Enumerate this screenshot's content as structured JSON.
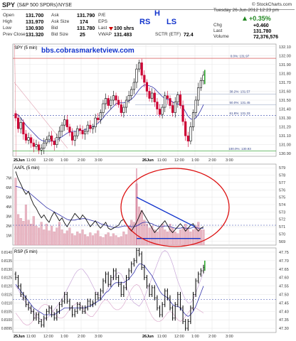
{
  "header": {
    "symbol": "SPY",
    "name": "(S&P 500 SPDRs)",
    "exchange": "NYSE",
    "date": "Tuesday 26-Jun-2012 12:23 pm",
    "logo": "© StockCharts.com",
    "fields": [
      {
        "label": "Open",
        "value": "131.700"
      },
      {
        "label": "High",
        "value": "131.970"
      },
      {
        "label": "Low",
        "value": "130.930"
      },
      {
        "label": "Prev Close",
        "value": "131.320"
      },
      {
        "label": "Ask",
        "value": "131.790"
      },
      {
        "label": "Ask Size",
        "value": "174"
      },
      {
        "label": "Bid",
        "value": "131.780"
      },
      {
        "label": "Bid Size",
        "value": "25"
      },
      {
        "label": "P/E",
        "value": ""
      },
      {
        "label": "EPS",
        "value": ""
      },
      {
        "label": "Last",
        "value": "100 shrs"
      },
      {
        "label": "VWAP",
        "value": "131.483"
      },
      {
        "label": "SCTR (ETF)",
        "value": "72.4"
      }
    ],
    "change_pct": "+0.35%",
    "chg_label": "Chg",
    "chg": "+0.460",
    "last_label": "Last",
    "last": "131.780",
    "volume_label": "Volume",
    "volume": "72,376,576"
  },
  "annotations": {
    "rs": "RS",
    "h": "H",
    "ls": "LS",
    "watermark": "bbs.cobrasmarketview.com"
  },
  "colors": {
    "candle_up": "#000000",
    "candle_down": "#cc0033",
    "ma_line": "#3333aa",
    "annotation_blue": "#1133cc",
    "circle": "#dd1111",
    "volume_bar": "#e9b8c4",
    "green_bar": "#33aa33",
    "rsp_ratio": "#aa66aa"
  },
  "chart_data": [
    {
      "type": "candlestick",
      "title": "SPY (5 min)",
      "y_ticks": [
        "132.10",
        "132.00",
        "131.90",
        "131.80",
        "131.70",
        "131.60",
        "131.50",
        "131.40",
        "131.30",
        "131.20",
        "131.10",
        "131.00",
        "130.90"
      ],
      "ylim": [
        130.87,
        132.13
      ],
      "x_ticks": [
        "25Jun",
        "11:00",
        "12:00",
        "1:00",
        "2:00",
        "3:00",
        "26Jun",
        "11:00",
        "12:00",
        "1:00",
        "2:00",
        "3:00"
      ],
      "fib_levels": [
        {
          "label": "0.0%: 131.97",
          "value": 131.97
        },
        {
          "label": "38.2%: 131.57",
          "value": 131.57
        },
        {
          "label": "50.0%: 131.45",
          "value": 131.45
        },
        {
          "label": "61.8%: 131.33",
          "value": 131.33
        },
        {
          "label": "100.0%: 130.93",
          "value": 130.93
        }
      ],
      "close": [
        131.3,
        131.18,
        131.25,
        131.12,
        131.05,
        131.08,
        131.02,
        130.98,
        131.0,
        130.94,
        130.96,
        131.02,
        131.06,
        131.1,
        131.04,
        131.0,
        131.08,
        131.15,
        131.22,
        131.28,
        131.2,
        131.14,
        131.05,
        131.1,
        131.18,
        131.16,
        131.12,
        131.15,
        131.22,
        131.18,
        131.2,
        131.3,
        131.28,
        131.36,
        131.46,
        131.52,
        131.44,
        131.5,
        131.55,
        131.5,
        131.45,
        131.36,
        131.42,
        131.5,
        131.55,
        131.62,
        131.7,
        131.85,
        131.92,
        131.78,
        131.7,
        131.6,
        131.52,
        131.58,
        131.48,
        131.4,
        131.34,
        131.42,
        131.55,
        131.52,
        131.44,
        131.36,
        131.48,
        131.56,
        131.44,
        131.26,
        131.1,
        131.04,
        131.2,
        131.36,
        131.5,
        131.64,
        131.72,
        131.78
      ],
      "ma": [
        131.35,
        131.33,
        131.3,
        131.26,
        131.22,
        131.19,
        131.16,
        131.13,
        131.1,
        131.07,
        131.05,
        131.04,
        131.04,
        131.04,
        131.04,
        131.04,
        131.05,
        131.07,
        131.09,
        131.11,
        131.13,
        131.14,
        131.15,
        131.15,
        131.15,
        131.16,
        131.16,
        131.17,
        131.18,
        131.19,
        131.2,
        131.22,
        131.24,
        131.27,
        131.3,
        131.34,
        131.37,
        131.4,
        131.43,
        131.46,
        131.47,
        131.47,
        131.47,
        131.48,
        131.49,
        131.51,
        131.54,
        131.58,
        131.62,
        131.65,
        131.67,
        131.67,
        131.66,
        131.65,
        131.63,
        131.6,
        131.57,
        131.54,
        131.52,
        131.51,
        131.5,
        131.48,
        131.46,
        131.46,
        131.45,
        131.42,
        131.37,
        131.32,
        131.29,
        131.28,
        131.3,
        131.34,
        131.39,
        131.45
      ]
    },
    {
      "type": "line+volume",
      "title": "AAPL (5 min)",
      "y_ticks": [
        "579",
        "578",
        "577",
        "576",
        "575",
        "574",
        "573",
        "572",
        "571",
        "570",
        "569"
      ],
      "ylim": [
        568.5,
        579.5
      ],
      "volume_ticks": [
        "7M",
        "6M",
        "5M",
        "4M",
        "3M",
        "2M",
        "1M"
      ],
      "volume_ylim": [
        0,
        8
      ],
      "triangle_upper": {
        "x": [
          0.64,
          0.94
        ],
        "y": [
          575.0,
          571.0
        ]
      },
      "triangle_lower": {
        "x": [
          0.64,
          0.97
        ],
        "y": [
          569.4,
          569.4
        ]
      },
      "close": [
        578.5,
        577.5,
        576.8,
        576.0,
        575.4,
        575.8,
        574.8,
        574.0,
        573.5,
        572.8,
        572.2,
        572.6,
        572.0,
        571.6,
        572.4,
        573.0,
        572.4,
        571.8,
        572.2,
        571.5,
        571.0,
        571.6,
        572.2,
        572.8,
        572.4,
        572.0,
        572.6,
        572.2,
        571.6,
        571.0,
        571.4,
        571.8,
        571.2,
        570.8,
        571.2,
        571.6,
        570.8,
        570.6,
        570.8,
        571.0,
        571.2,
        571.8,
        572.0,
        571.4,
        570.8,
        570.4,
        571.0,
        571.6,
        572.4,
        573.2,
        572.6,
        572.0,
        571.4,
        570.8,
        570.2,
        570.6,
        571.0,
        571.4,
        571.8,
        571.2,
        570.6,
        570.2,
        570.6,
        571.0,
        571.4,
        571.0,
        570.4,
        570.8,
        571.2,
        571.4,
        570.8,
        570.4,
        570.8,
        571.0
      ],
      "ma": [
        576.5,
        576.4,
        576.3,
        576.1,
        575.9,
        575.7,
        575.4,
        575.1,
        574.8,
        574.5,
        574.2,
        573.9,
        573.6,
        573.4,
        573.2,
        573.0,
        572.8,
        572.6,
        572.4,
        572.2,
        572.0,
        571.9,
        571.9,
        571.9,
        572.0,
        572.0,
        572.1,
        572.1,
        572.0,
        571.9,
        571.8,
        571.7,
        571.6,
        571.4,
        571.3,
        571.2,
        571.1,
        571.0,
        570.9,
        570.9,
        570.9,
        571.0,
        571.1,
        571.1,
        571.1,
        571.0,
        571.0,
        571.1,
        571.3,
        571.5,
        571.6,
        571.6,
        571.5,
        571.4,
        571.2,
        571.1,
        571.0,
        571.0,
        571.1,
        571.1,
        571.0,
        570.9,
        570.8,
        570.8,
        570.8,
        570.9,
        570.8,
        570.8,
        570.8,
        570.9,
        570.9,
        570.8,
        570.8,
        570.8
      ],
      "volume": [
        7.0,
        3.2,
        2.8,
        2.5,
        4.2,
        2.6,
        2.2,
        3.0,
        2.0,
        1.8,
        2.4,
        1.6,
        2.2,
        1.5,
        2.0,
        1.4,
        1.8,
        2.4,
        1.6,
        1.2,
        1.5,
        1.8,
        1.2,
        1.0,
        1.4,
        1.2,
        1.6,
        1.1,
        0.9,
        1.3,
        1.0,
        1.2,
        1.5,
        0.9,
        0.8,
        1.1,
        1.3,
        0.9,
        1.2,
        1.0,
        0.8,
        0.9,
        1.4,
        1.1,
        2.0,
        2.6,
        2.4,
        6.4,
        4.0,
        3.6,
        2.6,
        2.2,
        1.8,
        2.0,
        1.6,
        1.4,
        1.8,
        2.2,
        1.6,
        1.4,
        2.2,
        1.8,
        1.4,
        1.2,
        1.6,
        1.8,
        2.2,
        1.8,
        1.4,
        1.6,
        2.0,
        2.4,
        1.6,
        1.6
      ]
    },
    {
      "type": "ohlc+line",
      "title": "RSP (5 min)",
      "y_ticks_left": [
        "0.8140",
        "0.8135",
        "0.8130",
        "0.8125",
        "0.8120",
        "0.8115",
        "0.8110",
        "0.8105",
        "0.8100",
        "0.8095"
      ],
      "ylim_left": [
        0.80925,
        0.81425
      ],
      "y_ticks_right": [
        "47.75",
        "47.70",
        "47.65",
        "47.60",
        "47.55",
        "47.50",
        "47.45",
        "47.40",
        "47.35",
        "47.30"
      ],
      "ylim_right": [
        47.275,
        47.775
      ],
      "x_ticks": [
        "25Jun",
        "11:00",
        "12:00",
        "1:00",
        "2:00",
        "3:00",
        "26Jun",
        "11:00",
        "12:00",
        "1:00",
        "2:00",
        "3:00"
      ],
      "close": [
        47.6,
        47.55,
        47.5,
        47.48,
        47.44,
        47.42,
        47.4,
        47.36,
        47.38,
        47.34,
        47.32,
        47.36,
        47.4,
        47.42,
        47.38,
        47.36,
        47.4,
        47.44,
        47.46,
        47.5,
        47.46,
        47.42,
        47.38,
        47.4,
        47.44,
        47.42,
        47.4,
        47.42,
        47.46,
        47.44,
        47.45,
        47.5,
        47.48,
        47.52,
        47.58,
        47.62,
        47.56,
        47.6,
        47.64,
        47.6,
        47.56,
        47.5,
        47.54,
        47.6,
        47.64,
        47.68,
        47.7,
        47.76,
        47.74,
        47.66,
        47.6,
        47.55,
        47.5,
        47.54,
        47.48,
        47.42,
        47.38,
        47.44,
        47.52,
        47.48,
        47.42,
        47.36,
        47.44,
        47.5,
        47.42,
        47.34,
        47.3,
        47.34,
        47.42,
        47.5,
        47.58,
        47.62,
        47.64,
        47.66
      ],
      "ma": [
        47.56,
        47.54,
        47.52,
        47.5,
        47.48,
        47.46,
        47.44,
        47.42,
        47.41,
        47.4,
        47.39,
        47.38,
        47.38,
        47.38,
        47.38,
        47.38,
        47.39,
        47.4,
        47.41,
        47.42,
        47.42,
        47.42,
        47.42,
        47.42,
        47.42,
        47.42,
        47.42,
        47.42,
        47.43,
        47.43,
        47.44,
        47.45,
        47.46,
        47.47,
        47.49,
        47.51,
        47.52,
        47.54,
        47.56,
        47.57,
        47.57,
        47.57,
        47.57,
        47.58,
        47.59,
        47.61,
        47.63,
        47.66,
        47.68,
        47.68,
        47.67,
        47.65,
        47.63,
        47.61,
        47.58,
        47.55,
        47.52,
        47.5,
        47.49,
        47.48,
        47.46,
        47.44,
        47.43,
        47.43,
        47.42,
        47.4,
        47.38,
        47.37,
        47.38,
        47.4,
        47.43,
        47.47,
        47.51,
        47.55
      ],
      "ratio": [
        0.812,
        0.8118,
        0.8115,
        0.8112,
        0.811,
        0.8108,
        0.8106,
        0.8104,
        0.8102,
        0.8101,
        0.81,
        0.81,
        0.8101,
        0.8102,
        0.8104,
        0.8106,
        0.8108,
        0.811,
        0.8112,
        0.8115,
        0.8118,
        0.8121,
        0.8124,
        0.8127,
        0.8129,
        0.813,
        0.813,
        0.8128,
        0.8126,
        0.8123,
        0.812,
        0.8117,
        0.8115,
        0.8114,
        0.8114,
        0.8116,
        0.8119,
        0.8122,
        0.8125,
        0.8127,
        0.8128,
        0.8127,
        0.8124,
        0.812,
        0.8116,
        0.8112,
        0.811,
        0.8109,
        0.8108,
        0.811,
        0.8113,
        0.8117,
        0.8121,
        0.8125,
        0.8129,
        0.8133,
        0.8137,
        0.814,
        0.8141,
        0.814,
        0.8137,
        0.8133,
        0.8128,
        0.8123,
        0.8119,
        0.8115,
        0.8112,
        0.811,
        0.811,
        0.8112,
        0.8116,
        0.812,
        0.8124,
        0.8128
      ],
      "ratio2": [
        0.8104,
        0.8102,
        0.81,
        0.8098,
        0.8097,
        0.8097,
        0.8098,
        0.81,
        0.8103,
        0.8106,
        0.8108,
        0.8109,
        0.8109,
        0.8108,
        0.8106,
        0.8104,
        0.8102,
        0.8101,
        0.8101,
        0.8102,
        0.8104,
        0.8106,
        0.8108,
        0.8109,
        0.811,
        0.8109,
        0.8107,
        0.8105,
        0.8103,
        0.8102,
        0.8102,
        0.8104,
        0.8106,
        0.8109,
        0.8111,
        0.8112,
        0.8111,
        0.8109,
        0.8107,
        0.8106,
        0.8106,
        0.8107,
        0.8109,
        0.8112,
        0.8115,
        0.8118,
        0.812,
        0.8121,
        0.812,
        0.8117,
        0.8113,
        0.8109,
        0.8105,
        0.8102,
        0.81,
        0.8099,
        0.8099,
        0.81,
        0.8102,
        0.8104,
        0.8105,
        0.8104,
        0.8102,
        0.81,
        0.8099,
        0.81,
        0.8102,
        0.8104,
        0.8106,
        0.8107,
        0.8107,
        0.8106,
        0.8105,
        0.8104
      ]
    }
  ]
}
